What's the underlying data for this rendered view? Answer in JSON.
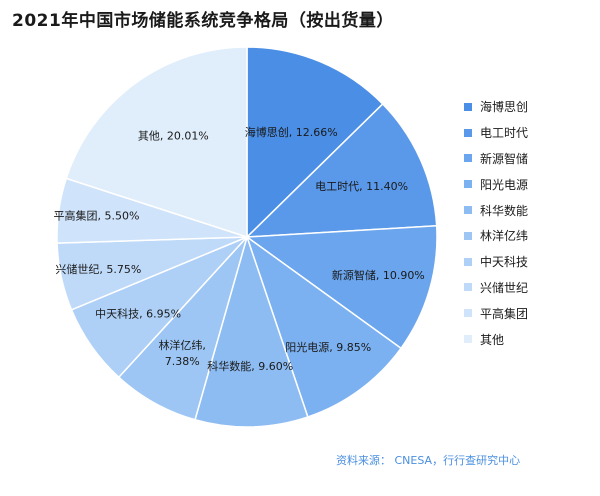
{
  "title": "2021年中国市场储能系统竞争格局（按出货量）",
  "source": "资料来源： CNESA，行行查研究中心",
  "chart_data": {
    "type": "pie",
    "title": "2021年中国市场储能系统竞争格局（按出货量）",
    "legend_position": "right",
    "slices": [
      {
        "name": "海博思创",
        "value": 12.66,
        "label": "海博思创, 12.66%",
        "color": "#4a8ee6"
      },
      {
        "name": "电工时代",
        "value": 11.4,
        "label": "电工时代, 11.40%",
        "color": "#5a99ea"
      },
      {
        "name": "新源智储",
        "value": 10.9,
        "label": "新源智储, 10.90%",
        "color": "#6aa5ee"
      },
      {
        "name": "阳光电源",
        "value": 9.85,
        "label": "阳光电源, 9.85%",
        "color": "#7cb1f1"
      },
      {
        "name": "科华数能",
        "value": 9.6,
        "label": "科华数能, 9.60%",
        "color": "#8dbcf3"
      },
      {
        "name": "林洋亿纬",
        "value": 7.38,
        "label": "林洋亿纬, 7.38%",
        "color": "#9dc6f5"
      },
      {
        "name": "中天科技",
        "value": 6.95,
        "label": "中天科技, 6.95%",
        "color": "#aed0f6"
      },
      {
        "name": "兴储世纪",
        "value": 5.75,
        "label": "兴储世纪, 5.75%",
        "color": "#bfdaf8"
      },
      {
        "name": "平高集团",
        "value": 5.5,
        "label": "平高集团, 5.50%",
        "color": "#cfe3fa"
      },
      {
        "name": "其他",
        "value": 20.01,
        "label": "其他, 20.01%",
        "color": "#e0edfb"
      }
    ]
  }
}
